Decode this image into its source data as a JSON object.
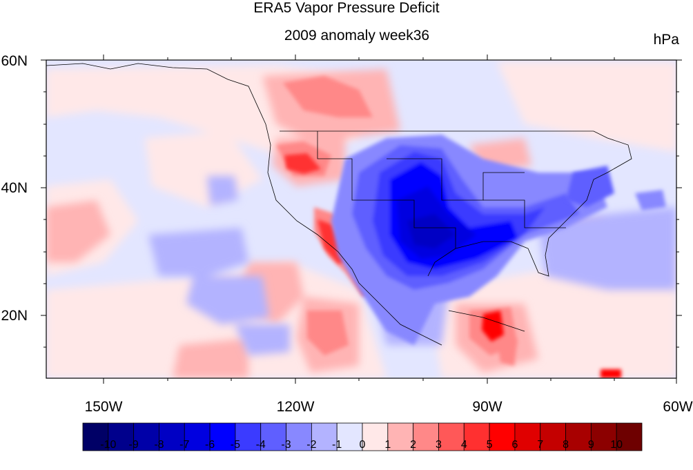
{
  "title": "ERA5 Vapor Pressure Deficit",
  "subtitle": "2009 anomaly week36",
  "units": "hPa",
  "lat_labels": [
    "60N",
    "40N",
    "20N"
  ],
  "lon_labels": [
    "150W",
    "120W",
    "90W",
    "60W"
  ],
  "colorbar": {
    "labels": [
      "-10",
      "-9",
      "-8",
      "-7",
      "-6",
      "-5",
      "-4",
      "-3",
      "-2",
      "-1",
      "0",
      "1",
      "2",
      "3",
      "4",
      "5",
      "6",
      "7",
      "8",
      "9",
      "10"
    ],
    "colors": [
      "#000066",
      "#00008c",
      "#0000a8",
      "#0000c4",
      "#0000e0",
      "#0000ff",
      "#3b3bff",
      "#5f5fff",
      "#8888ff",
      "#b3b3ff",
      "#e3e6ff",
      "#ffe8e8",
      "#ffb4b4",
      "#ff8888",
      "#ff5858",
      "#ff3030",
      "#ff0000",
      "#e00000",
      "#c40000",
      "#a80000",
      "#8c0000",
      "#6e0000"
    ]
  },
  "map": {
    "lon_range": [
      -159,
      -60
    ],
    "lat_range": [
      10,
      60
    ],
    "anomaly_regions": [
      {
        "name": "great-plains-negative",
        "value": -7
      },
      {
        "name": "mississippi-valley-negative",
        "value": -6
      },
      {
        "name": "california-coast-positive",
        "value": 4
      },
      {
        "name": "pacific-northwest-positive",
        "value": 4
      },
      {
        "name": "central-america-positive",
        "value": 6
      },
      {
        "name": "gulf-of-alaska-positive",
        "value": 2
      },
      {
        "name": "western-atlantic-negative",
        "value": -2
      },
      {
        "name": "east-pacific-negative",
        "value": -2
      }
    ]
  }
}
